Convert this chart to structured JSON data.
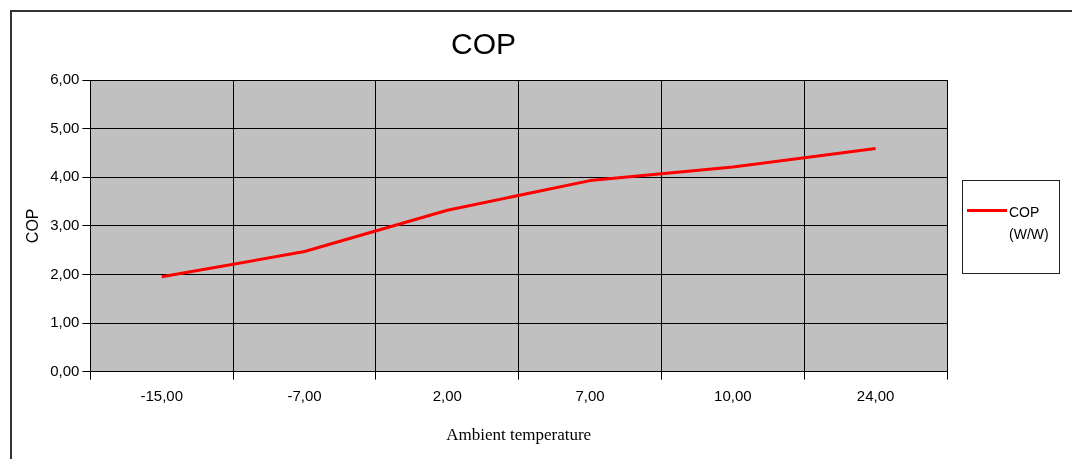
{
  "chart_data": {
    "type": "line",
    "title": "COP",
    "xlabel": "Ambient temperature",
    "ylabel": "COP",
    "categories": [
      "-15,00",
      "-7,00",
      "2,00",
      "7,00",
      "10,00",
      "24,00"
    ],
    "series": [
      {
        "name": "COP(W/W)",
        "color": "#ff0000",
        "values": [
          1.95,
          2.47,
          3.32,
          3.93,
          4.21,
          4.59
        ]
      }
    ],
    "ylim": [
      0,
      6
    ],
    "yticks": [
      {
        "value": 0,
        "label": "0,00"
      },
      {
        "value": 1,
        "label": "1,00"
      },
      {
        "value": 2,
        "label": "2,00"
      },
      {
        "value": 3,
        "label": "3,00"
      },
      {
        "value": 4,
        "label": "4,00"
      },
      {
        "value": 5,
        "label": "5,00"
      },
      {
        "value": 6,
        "label": "6,00"
      }
    ],
    "grid": true,
    "legend": "right",
    "marker": "none",
    "line_style": "solid"
  }
}
